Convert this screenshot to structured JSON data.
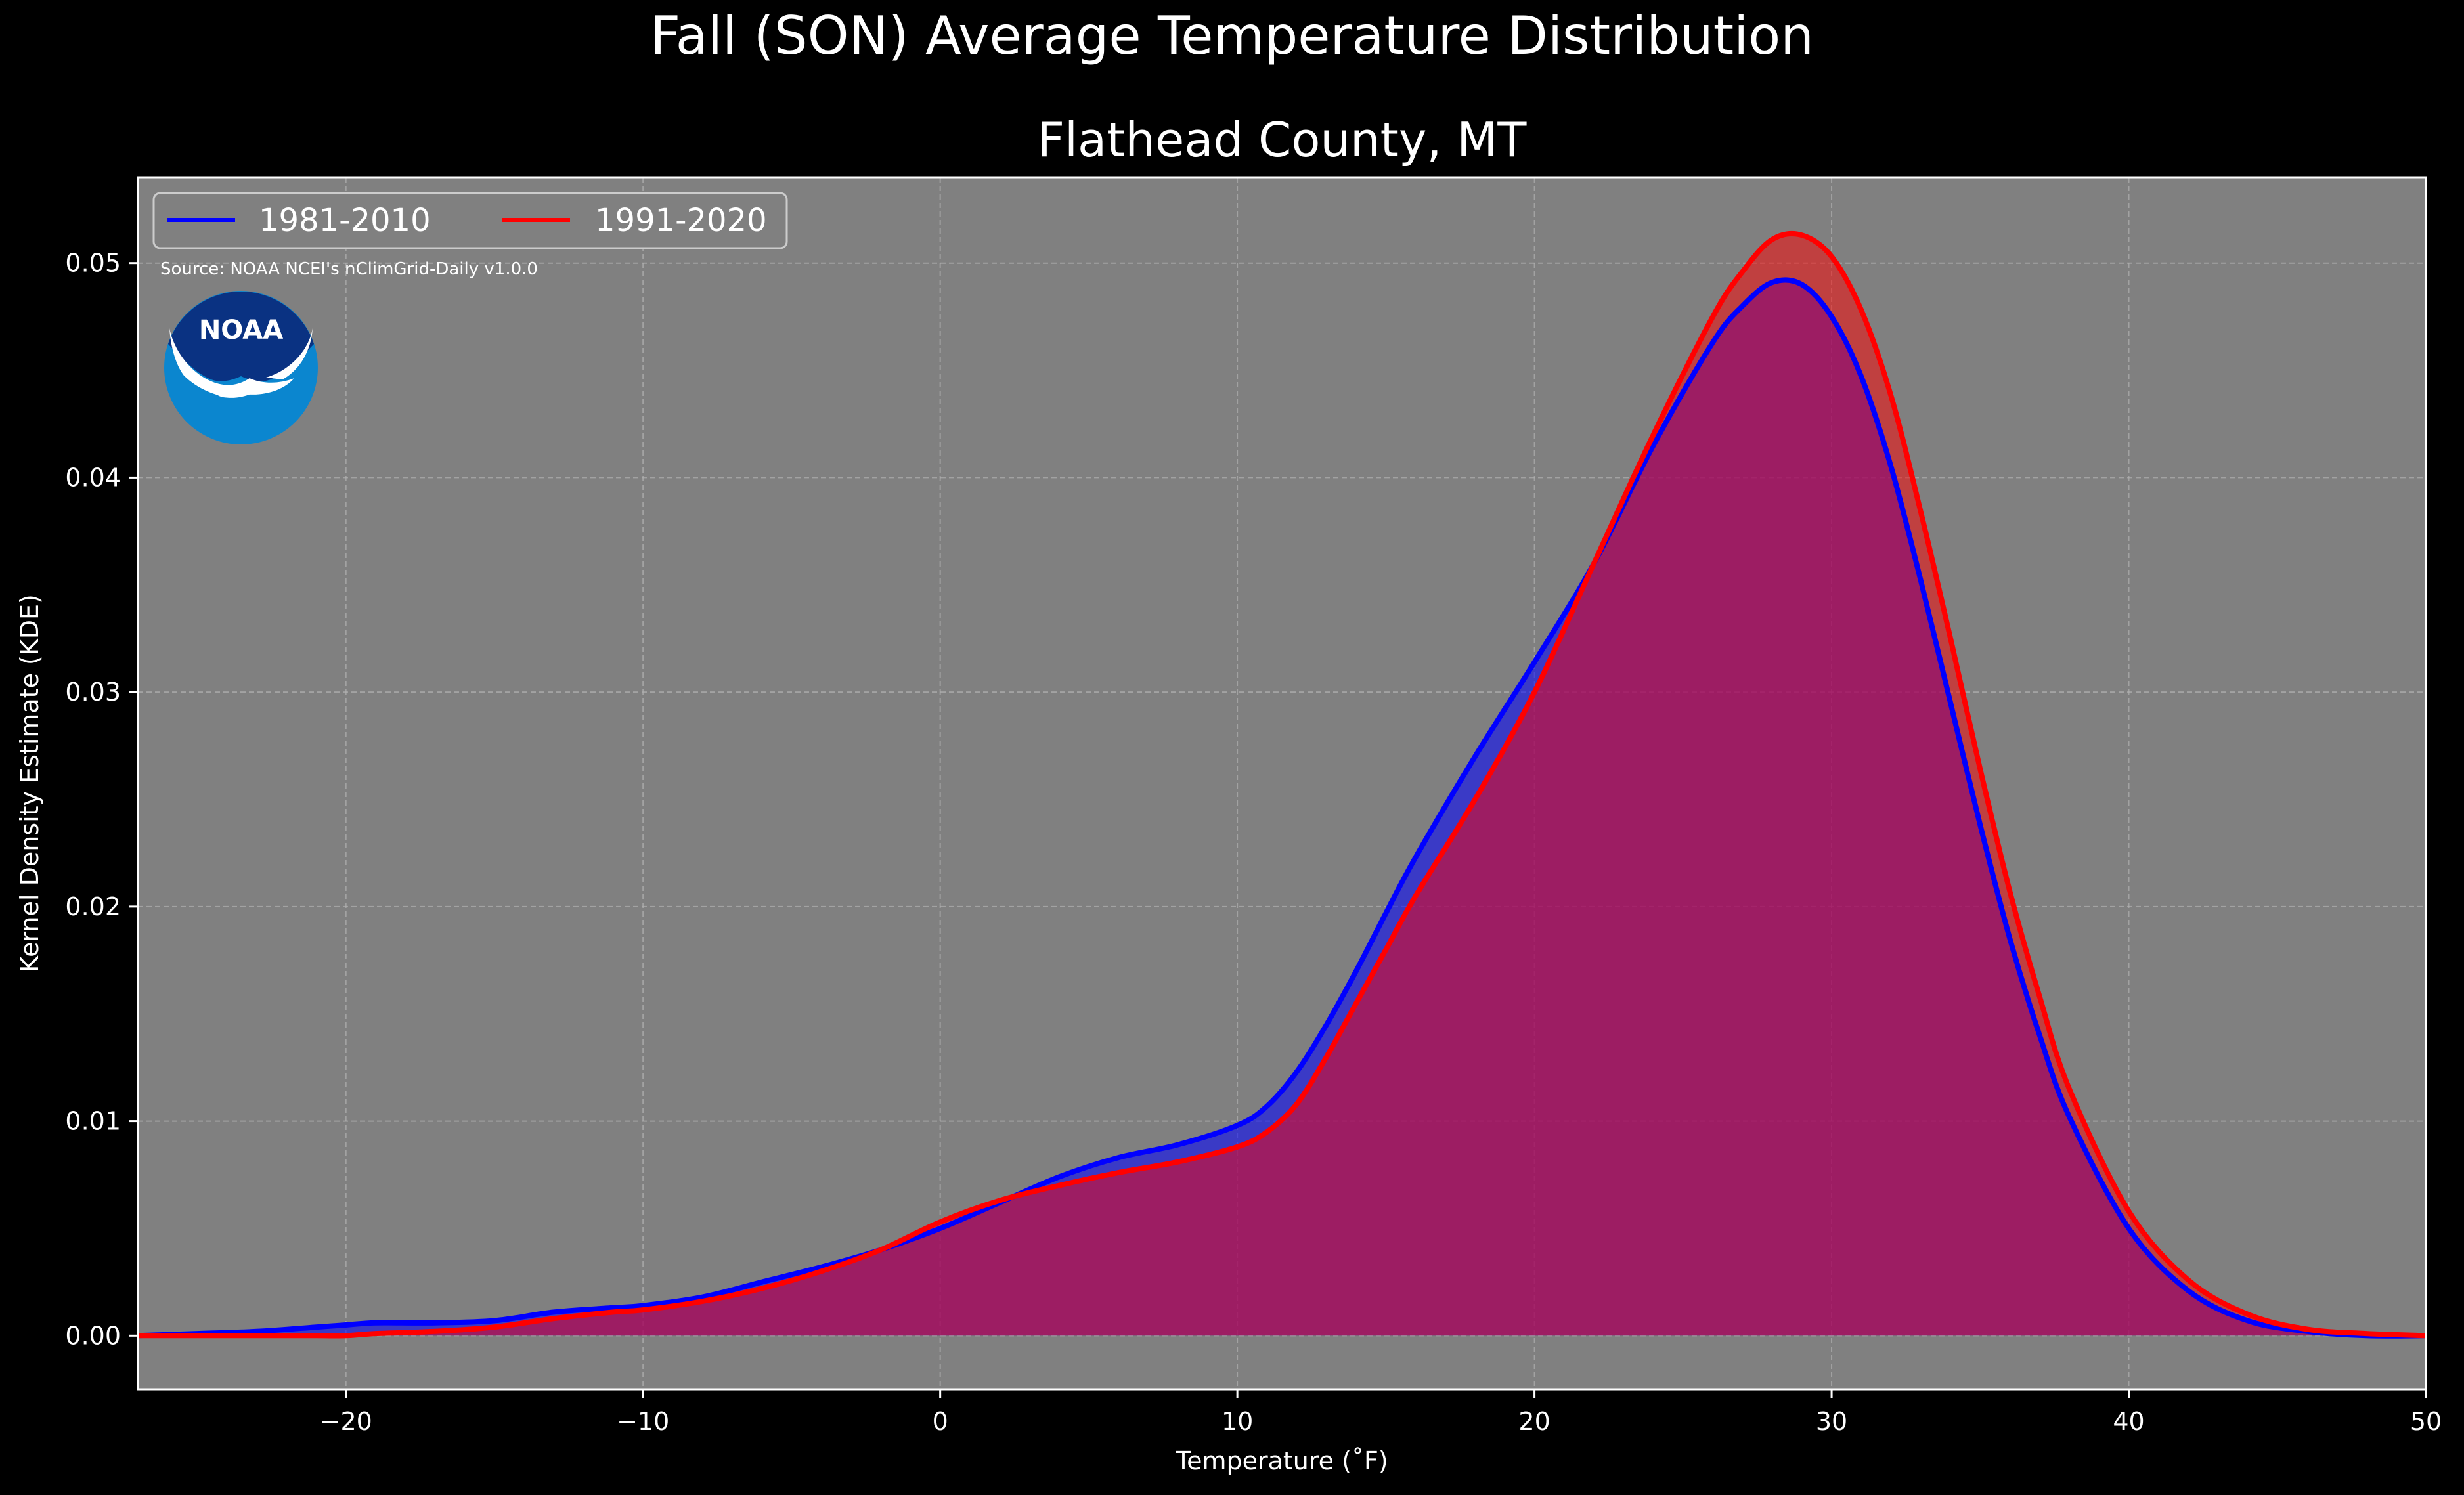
{
  "figure": {
    "title": "Fall (SON) Average Temperature Distribution",
    "subtitle": "Flathead County, MT",
    "source": "Source: NOAA NCEI's nClimGrid-Daily v1.0.0",
    "logo_text": "NOAA"
  },
  "colors": {
    "background": "#000000",
    "plot_bg": "#808080",
    "series_1981": "#0000ff",
    "series_1991": "#ff0000",
    "overlap_fill": "#9e1f5c",
    "logo_dark": "#0a3282",
    "logo_light": "#0b86cf"
  },
  "chart_data": {
    "type": "area",
    "title": "Flathead County, MT",
    "xlabel": "Temperature ($^\\circ$F)",
    "xlabel_display": "Temperature (˚F)",
    "ylabel": "Kernel Density Estimate (KDE)",
    "xlim": [
      -27,
      50
    ],
    "ylim": [
      -0.0025,
      0.054
    ],
    "x_ticks": [
      -20,
      -10,
      0,
      10,
      20,
      30,
      40,
      50
    ],
    "x_tick_labels": [
      "−20",
      "−10",
      "0",
      "10",
      "20",
      "30",
      "40",
      "50"
    ],
    "y_ticks": [
      0.0,
      0.01,
      0.02,
      0.03,
      0.04,
      0.05
    ],
    "y_tick_labels": [
      "0.00",
      "0.01",
      "0.02",
      "0.03",
      "0.04",
      "0.05"
    ],
    "grid": true,
    "legend_position": "top-left",
    "x": [
      -27,
      -25,
      -23,
      -21,
      -20,
      -19,
      -17,
      -15,
      -13,
      -11,
      -10,
      -8,
      -6,
      -4,
      -2,
      0,
      2,
      4,
      6,
      8,
      10,
      11,
      12,
      13,
      14,
      15,
      16,
      18,
      20,
      22,
      24,
      26,
      27,
      28,
      29,
      30,
      31,
      32,
      33,
      34,
      35,
      36,
      37,
      38,
      40,
      42,
      44,
      46,
      48,
      50
    ],
    "series": [
      {
        "name": "1981-2010",
        "color": "#0000ff",
        "values": [
          0.0,
          0.0001,
          0.0002,
          0.0004,
          0.0005,
          0.0006,
          0.0006,
          0.0007,
          0.0011,
          0.0013,
          0.0014,
          0.0018,
          0.0025,
          0.0032,
          0.004,
          0.005,
          0.0062,
          0.0074,
          0.0083,
          0.0089,
          0.0098,
          0.0107,
          0.0123,
          0.0145,
          0.017,
          0.0197,
          0.0223,
          0.027,
          0.0314,
          0.036,
          0.0415,
          0.0463,
          0.048,
          0.0491,
          0.049,
          0.0475,
          0.0447,
          0.0405,
          0.0352,
          0.0295,
          0.0238,
          0.0185,
          0.014,
          0.0102,
          0.005,
          0.0021,
          0.0007,
          0.0002,
          0.0,
          0.0
        ]
      },
      {
        "name": "1991-2020",
        "color": "#ff0000",
        "values": [
          0.0,
          0.0,
          0.0,
          0.0,
          0.0,
          0.0001,
          0.0002,
          0.0004,
          0.0008,
          0.0011,
          0.0012,
          0.0016,
          0.0022,
          0.003,
          0.004,
          0.0053,
          0.0063,
          0.007,
          0.0076,
          0.0081,
          0.0088,
          0.0095,
          0.0108,
          0.013,
          0.0155,
          0.018,
          0.0205,
          0.025,
          0.03,
          0.036,
          0.042,
          0.0475,
          0.0496,
          0.0511,
          0.0513,
          0.0503,
          0.0478,
          0.0438,
          0.0384,
          0.0325,
          0.0264,
          0.0207,
          0.0158,
          0.0115,
          0.0058,
          0.0026,
          0.001,
          0.0003,
          0.0001,
          0.0
        ]
      }
    ]
  }
}
